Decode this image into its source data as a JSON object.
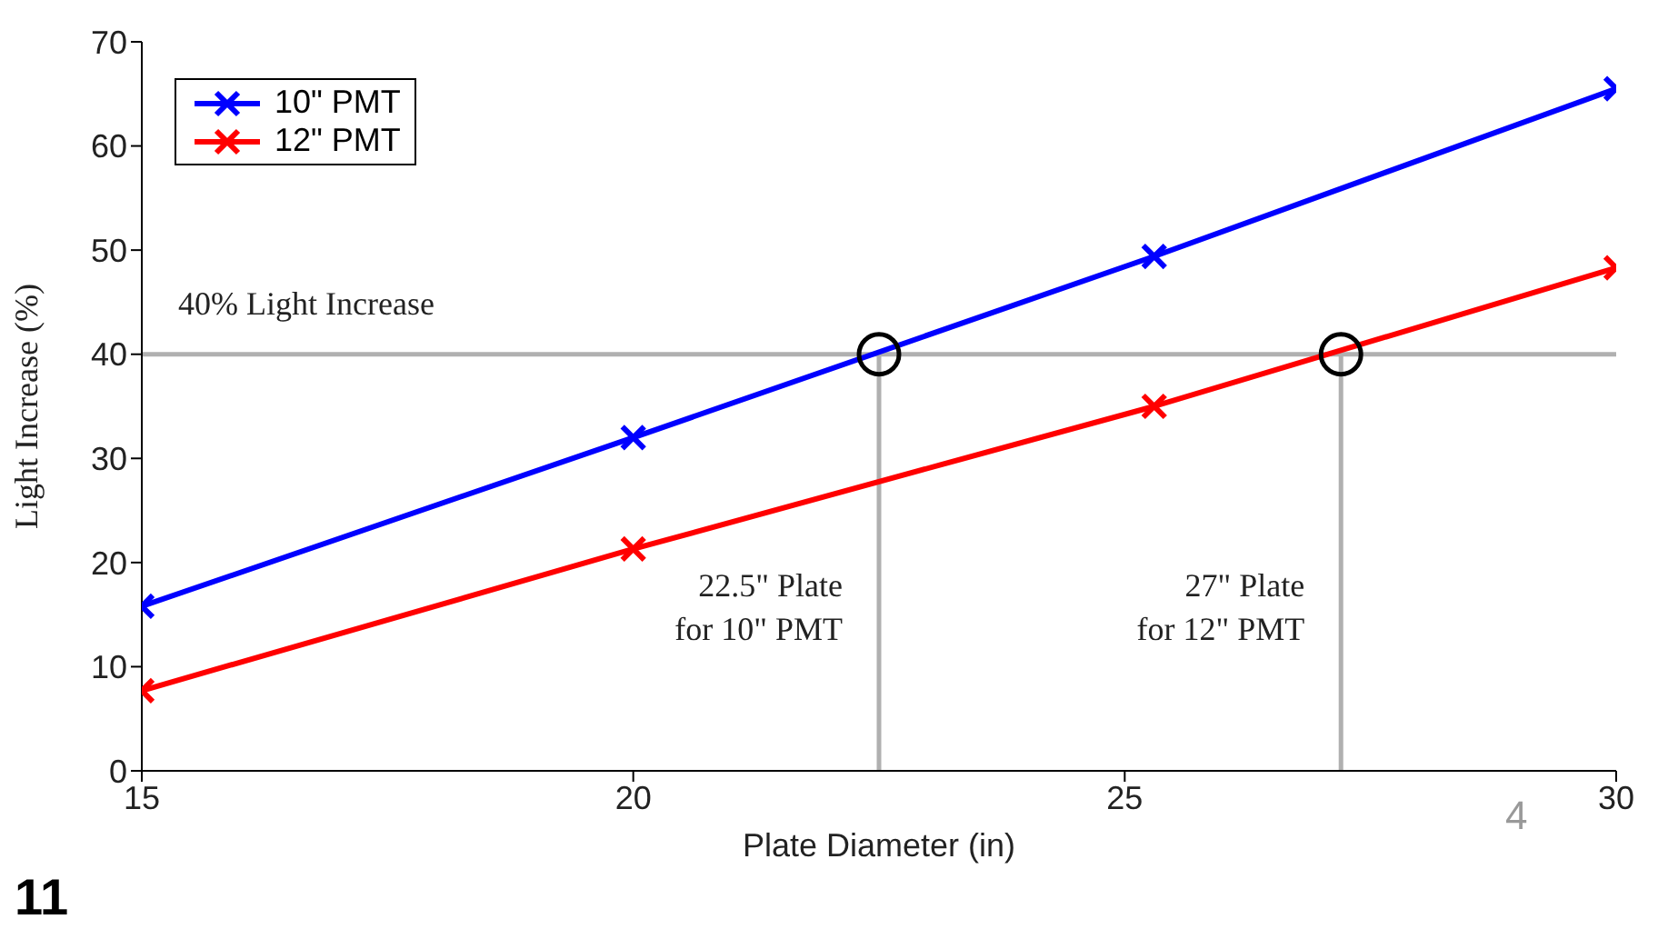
{
  "chart_data": {
    "type": "line",
    "xlabel": "Plate Diameter (in)",
    "ylabel": "Light Increase   (%)",
    "series": [
      {
        "name": "10\" PMT",
        "color": "#0000ff",
        "x": [
          15,
          20,
          25.3,
          30
        ],
        "values": [
          15.8,
          32,
          49.4,
          65.5
        ]
      },
      {
        "name": "12\" PMT",
        "color": "#ff0000",
        "x": [
          15,
          20,
          25.3,
          30
        ],
        "values": [
          7.7,
          21.3,
          35,
          48.3
        ]
      },
      {
        "type": "scatter",
        "color": "#000000",
        "marker": "circle",
        "x": [
          22.5,
          27.2
        ],
        "values": [
          40,
          40
        ]
      }
    ],
    "marker": "cross",
    "line_style": "solid",
    "legend": "top left",
    "grid": false,
    "xlim": [
      15,
      30
    ],
    "xticks": [
      15,
      20,
      25,
      30
    ],
    "ylim": [
      0,
      70
    ],
    "yticks": [
      0,
      10,
      20,
      30,
      40,
      50,
      60,
      70
    ],
    "ref_lines": [
      {
        "axis": "y",
        "value": 40,
        "label": "40% Light Increase",
        "color": "#b0b0b0"
      },
      {
        "axis": "x",
        "value": 22.5,
        "label": "22.5\" Plate\nfor 10\" PMT",
        "color": "#b0b0b0"
      },
      {
        "axis": "x",
        "value": 27.2,
        "label": "27\" Plate\nfor 12\" PMT",
        "color": "#b0b0b0"
      }
    ],
    "annotations": [
      "11",
      "4"
    ]
  }
}
